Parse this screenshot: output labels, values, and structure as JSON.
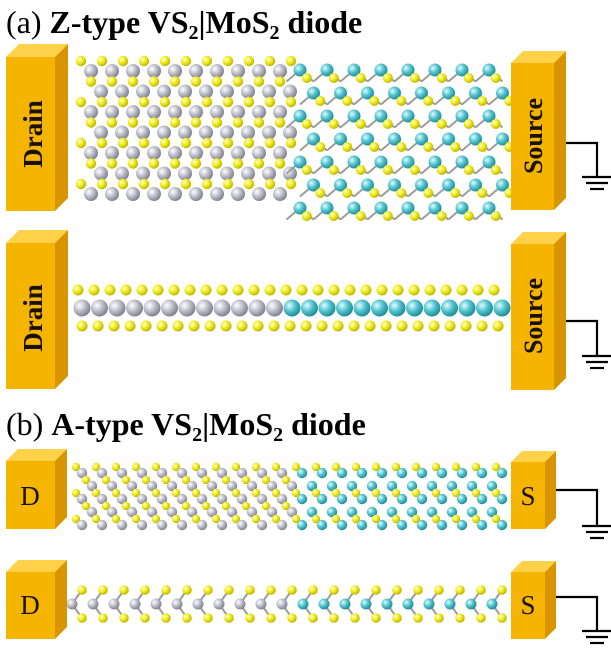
{
  "panels": [
    {
      "id": "a",
      "label": "(a)",
      "title_parts": [
        "Z-type VS",
        "2",
        "|MoS",
        "2",
        " diode"
      ],
      "top_view": {
        "left_electrode": "Drain",
        "right_electrode": "Source"
      },
      "side_view": {
        "left_electrode": "Drain",
        "right_electrode": "Source"
      }
    },
    {
      "id": "b",
      "label": "(b)",
      "title_parts": [
        "A-type VS",
        "2",
        "|MoS",
        "2",
        " diode"
      ],
      "top_view": {
        "left_electrode": "D",
        "right_electrode": "S"
      },
      "side_view": {
        "left_electrode": "D",
        "right_electrode": "S"
      }
    }
  ],
  "colors": {
    "electrode_front": "#f5b400",
    "electrode_side": "#d99500",
    "electrode_top": "#ffd24a",
    "sulfur": "#f2ee1e",
    "vanadium": "#b9b9c6",
    "molybdenum": "#4fc3cf",
    "bond": "#9c9c9c"
  }
}
